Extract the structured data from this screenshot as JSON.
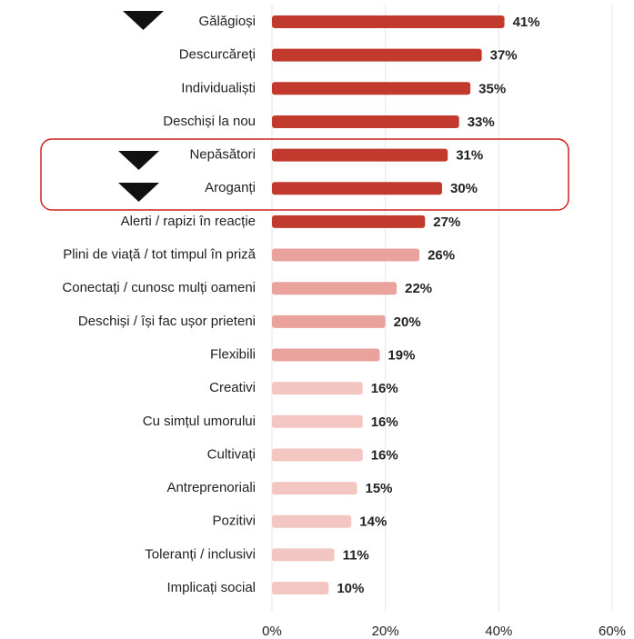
{
  "chart_data": {
    "type": "bar",
    "orientation": "horizontal",
    "categories": [
      "Gălăgioși",
      "Descurcăreți",
      "Individualiști",
      "Deschiși la nou",
      "Nepăsători",
      "Aroganți",
      "Alerti / rapizi în reacție",
      "Plini de viață / tot timpul în priză",
      "Conectați / cunosc mulți oameni",
      "Deschiși / își fac ușor prieteni",
      "Flexibili",
      "Creativi",
      "Cu simțul umorului",
      "Cultivați",
      "Antreprenoriali",
      "Pozitivi",
      "Toleranți / inclusivi",
      "Implicați social"
    ],
    "values": [
      41,
      37,
      35,
      33,
      31,
      30,
      27,
      26,
      22,
      20,
      19,
      16,
      16,
      16,
      15,
      14,
      11,
      10
    ],
    "value_labels": [
      "41%",
      "37%",
      "35%",
      "33%",
      "31%",
      "30%",
      "27%",
      "26%",
      "22%",
      "20%",
      "19%",
      "16%",
      "16%",
      "16%",
      "15%",
      "14%",
      "11%",
      "10%"
    ],
    "colors": [
      "#c2392d",
      "#c2392d",
      "#c2392d",
      "#c2392d",
      "#c2392d",
      "#c2392d",
      "#c2392d",
      "#e9a29c",
      "#e9a29c",
      "#e9a29c",
      "#e9a29c",
      "#f4c6c2",
      "#f4c6c2",
      "#f4c6c2",
      "#f4c6c2",
      "#f4c6c2",
      "#f4c6c2",
      "#f4c6c2"
    ],
    "xlim": [
      0,
      60
    ],
    "xticks": [
      {
        "value": 0,
        "label": "0%"
      },
      {
        "value": 20,
        "label": "20%"
      },
      {
        "value": 40,
        "label": "40%"
      },
      {
        "value": 60,
        "label": "60%"
      }
    ],
    "grid": true
  }
}
